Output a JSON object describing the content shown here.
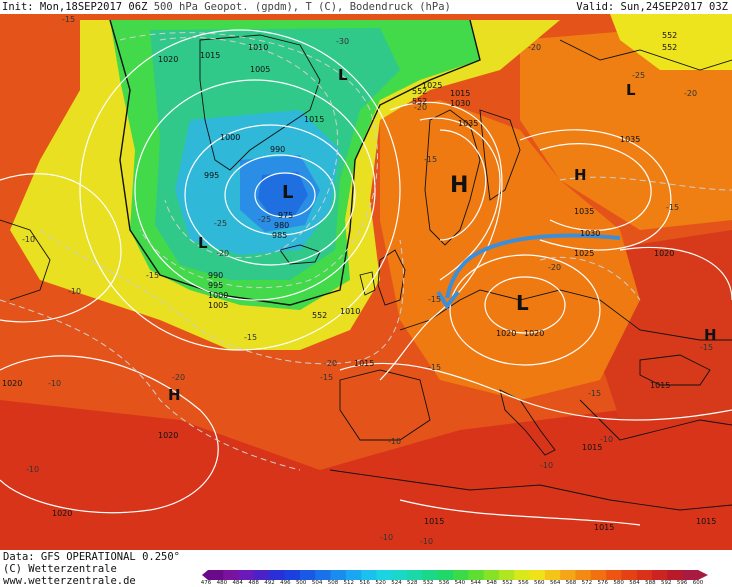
{
  "header": {
    "init": "Init: Mon,18SEP2017 06Z",
    "product": "500 hPa Geopot. (gpdm), T (C), Bodendruck (hPa)",
    "valid": "Valid: Sun,24SEP2017 03Z"
  },
  "footer": {
    "data_source": "Data: GFS OPERATIONAL 0.250°",
    "copyright": "(C) Wetterzentrale",
    "website": "www.wetterzentrale.de"
  },
  "colors": {
    "deep_low": "#1f6fe0",
    "low": "#2fb8e8",
    "cool": "#33cf8a",
    "mild_green": "#4ddc4a",
    "yellow": "#e8e820",
    "orange": "#f08a10",
    "warm": "#e85a10",
    "hot": "#d8341a",
    "arrow": "#3a8fd8",
    "isobar": "#ffffff",
    "coast": "#111111"
  },
  "scale": {
    "labels": [
      "476",
      "480",
      "484",
      "488",
      "492",
      "496",
      "500",
      "504",
      "508",
      "512",
      "516",
      "520",
      "524",
      "528",
      "532",
      "536",
      "540",
      "544",
      "548",
      "552",
      "556",
      "560",
      "564",
      "568",
      "572",
      "576",
      "580",
      "584",
      "588",
      "592",
      "596",
      "600"
    ],
    "colors": [
      "#6a0a8a",
      "#7a12a0",
      "#6a1ab8",
      "#4a22c8",
      "#2a30d8",
      "#1a40e0",
      "#1a58e6",
      "#1a72ea",
      "#1a8cee",
      "#1aa6f0",
      "#1ac0ee",
      "#1ad4e4",
      "#1ad8c8",
      "#1ad8a8",
      "#1ad888",
      "#20d868",
      "#3ada48",
      "#5ede30",
      "#86e226",
      "#b0e620",
      "#d8e81c",
      "#f0e21a",
      "#f4c418",
      "#f4a616",
      "#f28a14",
      "#f07012",
      "#ec5612",
      "#e44214",
      "#da3218",
      "#cc2420",
      "#b81a2a",
      "#a81a40"
    ]
  },
  "systems": [
    {
      "id": "L1",
      "label": "L"
    },
    {
      "id": "L2",
      "label": "L"
    },
    {
      "id": "L3",
      "label": "L"
    },
    {
      "id": "L4",
      "label": "L"
    },
    {
      "id": "L5",
      "label": "L"
    },
    {
      "id": "H1",
      "label": "H"
    },
    {
      "id": "H2",
      "label": "H"
    },
    {
      "id": "H3",
      "label": "H"
    },
    {
      "id": "H4",
      "label": "H"
    }
  ],
  "isobar_labels": [
    "1020",
    "1015",
    "1010",
    "1005",
    "1000",
    "995",
    "990",
    "985",
    "980",
    "975",
    "1015",
    "1025",
    "1030",
    "1035",
    "1035",
    "1035",
    "1030",
    "1025",
    "1020",
    "1020",
    "1020",
    "1015",
    "1010",
    "1005",
    "1000",
    "995",
    "990",
    "1015",
    "1015",
    "1015",
    "1020",
    "1020",
    "1020",
    "1015",
    "1015",
    "1015"
  ],
  "temp_labels": [
    "-15",
    "-30",
    "-20",
    "-25",
    "-20",
    "-25",
    "-20",
    "-15",
    "-20",
    "-20",
    "-15",
    "-10",
    "-15",
    "-10",
    "-10",
    "-15",
    "-15",
    "-20",
    "-20",
    "-25",
    "-15",
    "-10",
    "-15",
    "-10",
    "-10",
    "-15",
    "-15",
    "-10",
    "-10",
    "-10"
  ],
  "height_labels": [
    "552",
    "552",
    "552",
    "552",
    "552"
  ]
}
